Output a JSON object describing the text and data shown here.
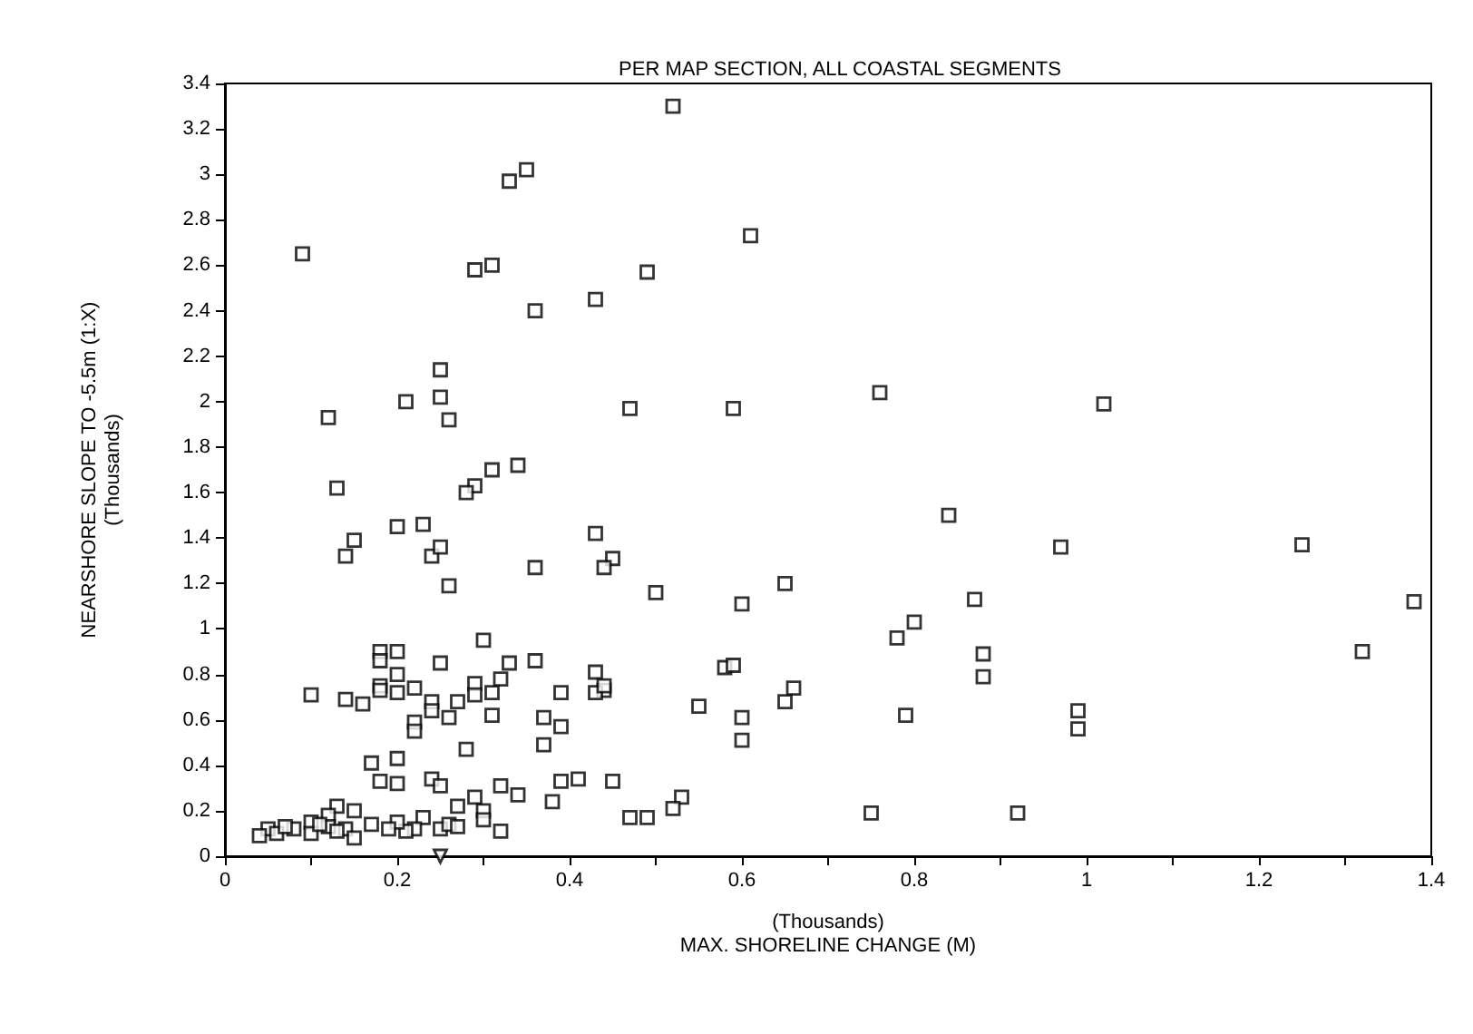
{
  "chart_data": {
    "type": "scatter",
    "title": "PER MAP SECTION, ALL COASTAL SEGMENTS",
    "xlabel": "(Thousands)\nMAX. SHORELINE CHANGE (M)",
    "ylabel": "NEARSHORE SLOPE TO -5.5m (1:X)\n(Thousands)",
    "xlim": [
      0,
      1.4
    ],
    "xticks": [
      0,
      {
        "value": 0.1,
        "label": null
      },
      0.2,
      {
        "value": 0.3,
        "label": null
      },
      0.4,
      {
        "value": 0.5,
        "label": null
      },
      0.6,
      {
        "value": 0.7,
        "label": null
      },
      0.8,
      {
        "value": 0.9,
        "label": null
      },
      1,
      {
        "value": 1.1,
        "label": null
      },
      1.2,
      {
        "value": 1.3,
        "label": null
      },
      1.4
    ],
    "ylim": [
      0,
      3.4
    ],
    "yticks": [
      0,
      0.2,
      0.4,
      0.6,
      0.8,
      1,
      1.2,
      1.4,
      1.6,
      1.8,
      2,
      2.2,
      2.4,
      2.6,
      2.8,
      3,
      3.2,
      3.4
    ],
    "grid": false,
    "series": [
      {
        "color": "#000000",
        "marker": "square",
        "x": [
          0.52,
          0.35,
          0.33,
          0.09,
          0.61,
          0.29,
          0.31,
          0.49,
          0.43,
          0.36,
          0.25,
          0.12,
          0.21,
          0.25,
          0.26,
          0.47,
          0.59,
          0.76,
          1.02,
          0.13,
          0.29,
          0.31,
          0.34,
          0.28,
          0.14,
          0.15,
          0.2,
          0.23,
          0.24,
          0.25,
          0.26,
          0.43,
          0.45,
          0.44,
          0.36,
          0.5,
          0.6,
          0.65,
          0.84,
          0.97,
          1.25,
          1.38,
          1.32,
          0.87,
          0.8,
          0.78,
          0.88,
          0.88,
          0.99,
          0.99,
          0.92,
          0.75,
          0.79,
          0.66,
          0.65,
          0.6,
          0.6,
          0.58,
          0.59,
          0.55,
          0.53,
          0.52,
          0.49,
          0.47,
          0.44,
          0.43,
          0.43,
          0.44,
          0.45,
          0.41,
          0.39,
          0.38,
          0.39,
          0.37,
          0.37,
          0.39,
          0.36,
          0.33,
          0.32,
          0.31,
          0.3,
          0.29,
          0.29,
          0.28,
          0.31,
          0.27,
          0.26,
          0.25,
          0.24,
          0.24,
          0.22,
          0.22,
          0.22,
          0.2,
          0.18,
          0.18,
          0.2,
          0.18,
          0.18,
          0.2,
          0.16,
          0.14,
          0.1,
          0.17,
          0.2,
          0.18,
          0.2,
          0.24,
          0.25,
          0.27,
          0.29,
          0.3,
          0.3,
          0.32,
          0.32,
          0.34,
          0.25,
          0.23,
          0.22,
          0.26,
          0.21,
          0.27,
          0.2,
          0.15,
          0.13,
          0.12,
          0.1,
          0.05,
          0.06,
          0.08,
          0.1,
          0.12,
          0.14,
          0.15,
          0.17,
          0.19,
          0.04,
          0.07,
          0.11,
          0.13
        ],
        "values": [
          3.3,
          3.02,
          2.97,
          2.65,
          2.73,
          2.58,
          2.6,
          2.57,
          2.45,
          2.4,
          2.14,
          1.93,
          2.0,
          2.02,
          1.92,
          1.97,
          1.97,
          2.04,
          1.99,
          1.62,
          1.63,
          1.7,
          1.72,
          1.6,
          1.32,
          1.39,
          1.45,
          1.46,
          1.32,
          1.36,
          1.19,
          1.42,
          1.31,
          1.27,
          1.27,
          1.16,
          1.11,
          1.2,
          1.5,
          1.36,
          1.37,
          1.12,
          0.9,
          1.13,
          1.03,
          0.96,
          0.89,
          0.79,
          0.64,
          0.56,
          0.19,
          0.19,
          0.62,
          0.74,
          0.68,
          0.51,
          0.61,
          0.83,
          0.84,
          0.66,
          0.26,
          0.21,
          0.17,
          0.17,
          0.73,
          0.81,
          0.72,
          0.75,
          0.33,
          0.34,
          0.33,
          0.24,
          0.57,
          0.49,
          0.61,
          0.72,
          0.86,
          0.85,
          0.78,
          0.72,
          0.95,
          0.76,
          0.71,
          0.47,
          0.62,
          0.68,
          0.61,
          0.85,
          0.68,
          0.64,
          0.59,
          0.55,
          0.74,
          0.9,
          0.9,
          0.86,
          0.8,
          0.75,
          0.73,
          0.72,
          0.67,
          0.69,
          0.71,
          0.41,
          0.43,
          0.33,
          0.32,
          0.34,
          0.31,
          0.22,
          0.26,
          0.2,
          0.16,
          0.31,
          0.11,
          0.27,
          0.12,
          0.17,
          0.12,
          0.14,
          0.11,
          0.13,
          0.15,
          0.2,
          0.22,
          0.18,
          0.15,
          0.12,
          0.1,
          0.12,
          0.1,
          0.13,
          0.12,
          0.08,
          0.14,
          0.12,
          0.09,
          0.13,
          0.14,
          0.11
        ]
      },
      {
        "color": "#000000",
        "marker": "triangle",
        "x": [
          0.25
        ],
        "values": [
          0
        ]
      }
    ]
  }
}
